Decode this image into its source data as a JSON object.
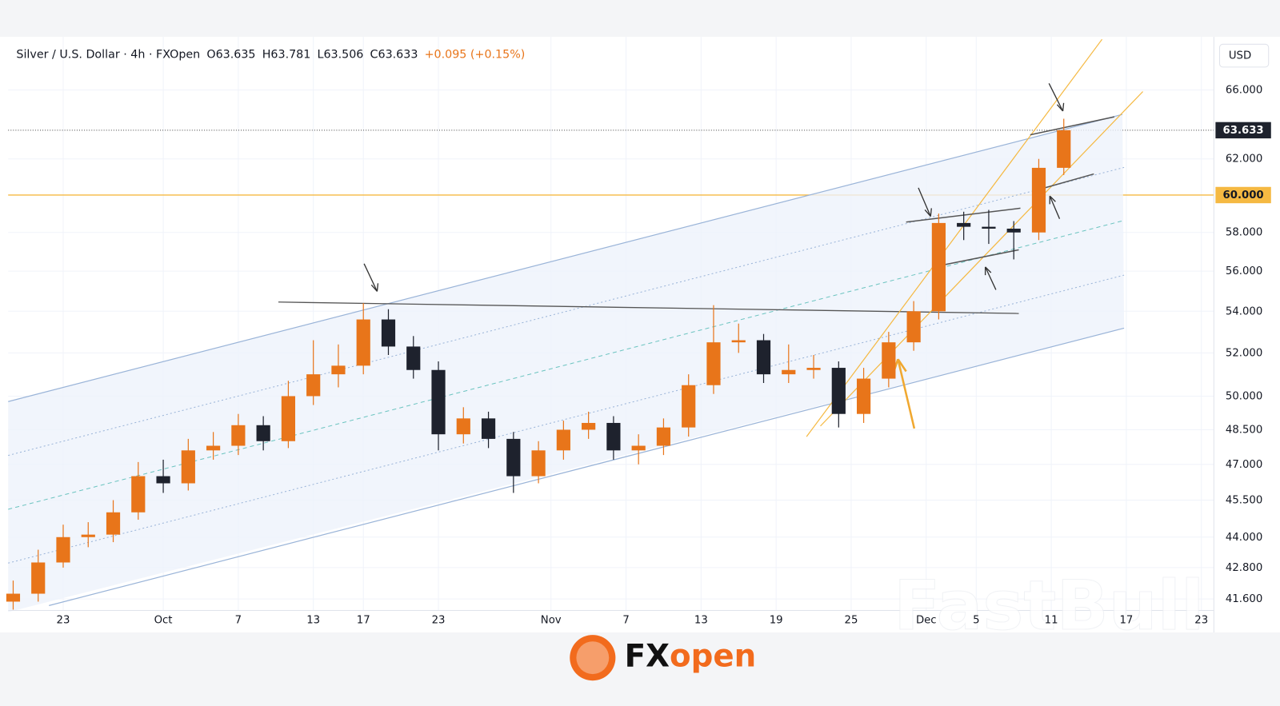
{
  "header": {
    "symbol": "Silver / U.S. Dollar · 4h · FXOpen",
    "open": "O63.635",
    "high": "H63.781",
    "low": "L63.506",
    "close": "C63.633",
    "change": "+0.095 (+0.15%)",
    "currency": "USD"
  },
  "logo": {
    "fx": "FX",
    "open": "open"
  },
  "watermark": "FastBull",
  "chart_data": {
    "type": "candlestick",
    "log_scale": true,
    "up_color": "#e8751a",
    "down_color": "#1e222d",
    "x": [
      19,
      21,
      23,
      25,
      27,
      29,
      31,
      33,
      35,
      37,
      39,
      41,
      43,
      45,
      47,
      49,
      51,
      53,
      55,
      57,
      59,
      61,
      63,
      65,
      67,
      69,
      71,
      73,
      75,
      77,
      79,
      81,
      83,
      85,
      87,
      89,
      91,
      93,
      95,
      97,
      99,
      101,
      103
    ],
    "open": [
      41.5,
      41.8,
      43.0,
      44.0,
      44.1,
      45.0,
      46.5,
      46.2,
      47.6,
      47.8,
      48.7,
      48.0,
      50.0,
      51.0,
      51.4,
      53.6,
      52.3,
      51.2,
      48.3,
      49.0,
      48.1,
      46.5,
      47.6,
      48.5,
      48.8,
      47.6,
      47.8,
      48.6,
      50.5,
      52.5,
      52.6,
      51.0,
      51.2,
      51.3,
      49.2,
      50.8,
      52.5,
      54.0,
      58.5,
      58.3,
      58.2,
      58.0,
      61.5
    ],
    "high": [
      42.3,
      43.5,
      44.5,
      44.6,
      45.5,
      47.1,
      47.2,
      48.1,
      48.4,
      49.2,
      49.1,
      50.7,
      52.6,
      52.4,
      54.4,
      54.1,
      52.8,
      51.6,
      49.5,
      49.3,
      48.4,
      48.0,
      48.9,
      49.3,
      49.1,
      48.3,
      49.0,
      51.0,
      54.3,
      53.4,
      52.9,
      52.4,
      51.9,
      51.6,
      51.3,
      53.0,
      54.5,
      59.0,
      59.1,
      59.2,
      58.6,
      62.0,
      64.3
    ],
    "low": [
      41.2,
      41.5,
      42.8,
      43.6,
      43.8,
      44.7,
      45.8,
      45.9,
      47.2,
      47.4,
      47.6,
      47.7,
      49.6,
      50.4,
      51.0,
      51.9,
      50.8,
      47.6,
      47.9,
      47.7,
      45.8,
      46.2,
      47.2,
      48.1,
      47.2,
      47.0,
      47.4,
      48.2,
      50.1,
      52.0,
      50.6,
      50.6,
      50.8,
      48.6,
      48.8,
      50.4,
      52.1,
      53.6,
      57.6,
      57.4,
      56.6,
      57.6,
      61.1
    ],
    "close": [
      41.8,
      43.0,
      44.0,
      44.1,
      45.0,
      46.5,
      46.2,
      47.6,
      47.8,
      48.7,
      48.0,
      50.0,
      51.0,
      51.4,
      53.6,
      52.3,
      51.2,
      48.3,
      49.0,
      48.1,
      46.5,
      47.6,
      48.5,
      48.8,
      47.6,
      47.8,
      48.6,
      50.5,
      52.5,
      52.6,
      51.0,
      51.2,
      51.3,
      49.2,
      50.8,
      52.5,
      54.0,
      58.5,
      58.3,
      58.2,
      58.0,
      61.5,
      63.633
    ],
    "xlim": [
      18.6,
      115
    ],
    "xticks": [
      {
        "value": 23,
        "label": "23"
      },
      {
        "value": 31,
        "label": "Oct"
      },
      {
        "value": 37,
        "label": "7"
      },
      {
        "value": 43,
        "label": "13"
      },
      {
        "value": 47,
        "label": "17"
      },
      {
        "value": 53,
        "label": "23"
      },
      {
        "value": 62,
        "label": "Nov"
      },
      {
        "value": 68,
        "label": "7"
      },
      {
        "value": 74,
        "label": "13"
      },
      {
        "value": 80,
        "label": "19"
      },
      {
        "value": 86,
        "label": "25"
      },
      {
        "value": 92,
        "label": "Dec"
      },
      {
        "value": 96,
        "label": "5"
      },
      {
        "value": 102,
        "label": "11"
      },
      {
        "value": 108,
        "label": "17"
      },
      {
        "value": 114,
        "label": "23"
      }
    ],
    "ylim": [
      41.17,
      69.1
    ],
    "yticks": [
      {
        "value": 66,
        "label": "66.000"
      },
      {
        "value": 62,
        "label": "62.000"
      },
      {
        "value": 58,
        "label": "58.000"
      },
      {
        "value": 56,
        "label": "56.000"
      },
      {
        "value": 54,
        "label": "54.000"
      },
      {
        "value": 52,
        "label": "52.000"
      },
      {
        "value": 50,
        "label": "50.000"
      },
      {
        "value": 48.5,
        "label": "48.500"
      },
      {
        "value": 47,
        "label": "47.000"
      },
      {
        "value": 45.5,
        "label": "45.500"
      },
      {
        "value": 44,
        "label": "44.000"
      },
      {
        "value": 42.8,
        "label": "42.800"
      },
      {
        "value": 41.6,
        "label": "41.600"
      }
    ],
    "grid": true,
    "last_price": {
      "value": 63.633,
      "label": "63.633"
    },
    "level": {
      "value": 60,
      "label": "60.000",
      "color": "#f5b942"
    }
  }
}
